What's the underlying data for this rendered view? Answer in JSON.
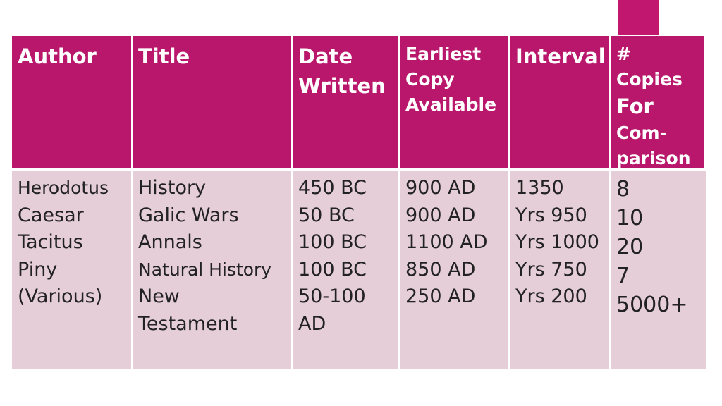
{
  "table": {
    "headers": [
      [
        "Author"
      ],
      [
        "Title"
      ],
      [
        "Date",
        "Written"
      ],
      [
        "Earliest",
        "Copy",
        "Available"
      ],
      [
        "Interval"
      ],
      [
        "#",
        "Copies",
        "For",
        "Com-",
        "parison"
      ]
    ],
    "columns": [
      [
        "Herodotus",
        "Caesar",
        "Tacitus",
        "Piny",
        "(Various)"
      ],
      [
        "History",
        "Galic Wars",
        "Annals",
        "Natural History",
        "New",
        "Testament"
      ],
      [
        "450 BC",
        "50 BC",
        "100 BC",
        "100 BC",
        "50-100",
        "AD"
      ],
      [
        "900 AD",
        "900 AD",
        "1100 AD",
        "850 AD",
        "250 AD"
      ],
      [
        "1350",
        "Yrs 950",
        "Yrs 1000",
        "Yrs 750",
        "Yrs 200"
      ],
      [
        "8",
        "10",
        "20",
        "7",
        "5000+"
      ]
    ]
  },
  "colors": {
    "header_bg": "#b8176b",
    "body_bg": "#e5ced7",
    "accent_tab": "#c1176e"
  }
}
